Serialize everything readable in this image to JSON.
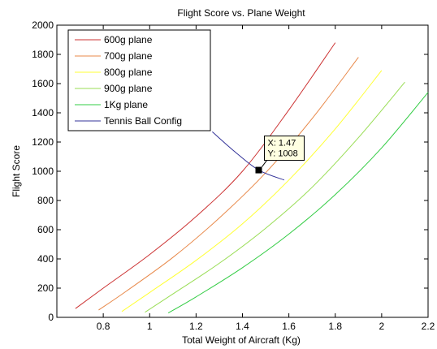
{
  "chart_data": {
    "type": "line",
    "title": "Flight Score vs. Plane Weight",
    "xlabel": "Total Weight of Aircraft (Kg)",
    "ylabel": "Flight Score",
    "xlim": [
      0.6,
      2.2
    ],
    "ylim": [
      0,
      2000
    ],
    "xticks": [
      0.8,
      1,
      1.2,
      1.4,
      1.6,
      1.8,
      2,
      2.2
    ],
    "xtick_labels": [
      "0.8",
      "1",
      "1.2",
      "1.4",
      "1.6",
      "1.8",
      "2",
      "2.2"
    ],
    "yticks": [
      0,
      200,
      400,
      600,
      800,
      1000,
      1200,
      1400,
      1600,
      1800,
      2000
    ],
    "ytick_labels": [
      "0",
      "200",
      "400",
      "600",
      "800",
      "1000",
      "1200",
      "1400",
      "1600",
      "1800",
      "2000"
    ],
    "grid": false,
    "legend_position": "top-left",
    "series": [
      {
        "name": "600g plane",
        "color": "#cc3333",
        "x": [
          0.68,
          0.8,
          1.0,
          1.2,
          1.4,
          1.6,
          1.8
        ],
        "y": [
          60,
          200,
          430,
          690,
          1000,
          1420,
          1880
        ]
      },
      {
        "name": "700g plane",
        "color": "#e8894a",
        "x": [
          0.78,
          0.9,
          1.1,
          1.3,
          1.5,
          1.7,
          1.9
        ],
        "y": [
          50,
          180,
          410,
          680,
          990,
          1360,
          1780
        ]
      },
      {
        "name": "800g plane",
        "color": "#ffff33",
        "x": [
          0.88,
          1.0,
          1.2,
          1.4,
          1.6,
          1.8,
          2.0
        ],
        "y": [
          40,
          170,
          390,
          640,
          940,
          1290,
          1690
        ]
      },
      {
        "name": "900g plane",
        "color": "#99dd55",
        "x": [
          0.98,
          1.1,
          1.3,
          1.5,
          1.7,
          1.9,
          2.1
        ],
        "y": [
          35,
          160,
          370,
          610,
          890,
          1230,
          1610
        ]
      },
      {
        "name": "1Kg plane",
        "color": "#33cc44",
        "x": [
          1.08,
          1.2,
          1.4,
          1.6,
          1.8,
          2.0,
          2.2
        ],
        "y": [
          30,
          140,
          340,
          570,
          840,
          1160,
          1540
        ]
      },
      {
        "name": "Tennis Ball Config",
        "color": "#333399",
        "x": [
          1.27,
          1.37,
          1.47,
          1.58
        ],
        "y": [
          1270,
          1130,
          1008,
          940
        ]
      }
    ],
    "datatip": {
      "x": 1.47,
      "y": 1008,
      "x_text": "X: 1.47",
      "y_text": "Y: 1008"
    }
  }
}
